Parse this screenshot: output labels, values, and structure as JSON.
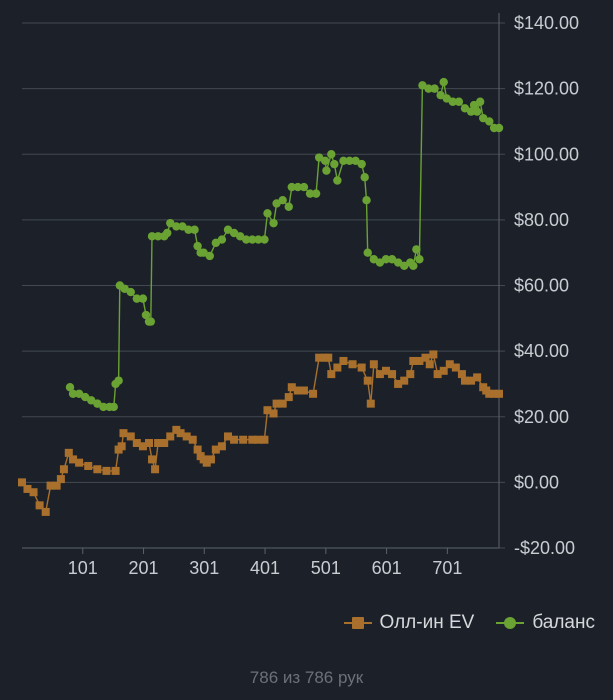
{
  "chart_data": {
    "type": "line",
    "x_ticks": [
      101,
      201,
      301,
      401,
      501,
      601,
      701
    ],
    "x_range": [
      1,
      786
    ],
    "y_ticks": [
      -20,
      0,
      20,
      40,
      60,
      80,
      100,
      120,
      140
    ],
    "y_tick_labels": [
      "-$20.00",
      "$0.00",
      "$20.00",
      "$40.00",
      "$60.00",
      "$80.00",
      "$100.00",
      "$120.00",
      "$140.00"
    ],
    "ylim": [
      -20,
      140
    ],
    "grid": true,
    "legend_position": "bottom-right",
    "series": [
      {
        "name": "Олл-ин EV",
        "color": "#a8702c",
        "marker": "square",
        "points": [
          [
            1,
            0
          ],
          [
            10,
            -2
          ],
          [
            20,
            -3
          ],
          [
            30,
            -7
          ],
          [
            40,
            -9
          ],
          [
            48,
            -1
          ],
          [
            58,
            -1
          ],
          [
            65,
            1
          ],
          [
            70,
            4
          ],
          [
            78,
            9
          ],
          [
            85,
            7
          ],
          [
            95,
            6
          ],
          [
            110,
            5
          ],
          [
            125,
            4
          ],
          [
            140,
            3.5
          ],
          [
            155,
            3.5
          ],
          [
            160,
            10
          ],
          [
            165,
            11
          ],
          [
            168,
            15
          ],
          [
            180,
            14
          ],
          [
            190,
            12
          ],
          [
            200,
            11
          ],
          [
            210,
            12
          ],
          [
            215,
            7
          ],
          [
            220,
            4
          ],
          [
            225,
            12
          ],
          [
            235,
            12
          ],
          [
            245,
            14
          ],
          [
            255,
            16
          ],
          [
            262,
            15
          ],
          [
            272,
            14
          ],
          [
            282,
            13
          ],
          [
            290,
            10
          ],
          [
            295,
            8
          ],
          [
            300,
            7
          ],
          [
            305,
            6
          ],
          [
            312,
            7
          ],
          [
            320,
            10
          ],
          [
            330,
            11
          ],
          [
            340,
            14
          ],
          [
            350,
            13
          ],
          [
            365,
            13
          ],
          [
            380,
            13
          ],
          [
            390,
            13
          ],
          [
            400,
            13
          ],
          [
            405,
            22
          ],
          [
            415,
            21
          ],
          [
            420,
            24
          ],
          [
            430,
            24
          ],
          [
            440,
            26
          ],
          [
            445,
            29
          ],
          [
            455,
            28
          ],
          [
            465,
            28
          ],
          [
            480,
            27
          ],
          [
            490,
            38
          ],
          [
            500,
            38
          ],
          [
            505,
            38
          ],
          [
            510,
            33
          ],
          [
            520,
            35
          ],
          [
            530,
            37
          ],
          [
            545,
            36
          ],
          [
            560,
            35
          ],
          [
            570,
            31
          ],
          [
            575,
            24
          ],
          [
            580,
            36
          ],
          [
            590,
            33
          ],
          [
            600,
            34
          ],
          [
            610,
            33
          ],
          [
            620,
            30
          ],
          [
            630,
            31
          ],
          [
            640,
            33
          ],
          [
            645,
            37
          ],
          [
            655,
            37
          ],
          [
            665,
            38
          ],
          [
            672,
            36
          ],
          [
            678,
            39
          ],
          [
            685,
            33
          ],
          [
            695,
            34
          ],
          [
            705,
            36
          ],
          [
            715,
            35
          ],
          [
            725,
            33
          ],
          [
            730,
            31
          ],
          [
            740,
            31
          ],
          [
            750,
            32
          ],
          [
            760,
            29
          ],
          [
            765,
            28
          ],
          [
            770,
            27
          ],
          [
            778,
            27
          ],
          [
            786,
            27
          ]
        ]
      },
      {
        "name": "баланс",
        "color": "#6aa233",
        "marker": "circle",
        "points": [
          [
            80,
            29
          ],
          [
            85,
            27
          ],
          [
            95,
            27
          ],
          [
            105,
            26
          ],
          [
            115,
            25
          ],
          [
            125,
            24
          ],
          [
            135,
            23
          ],
          [
            145,
            23
          ],
          [
            152,
            23
          ],
          [
            155,
            30
          ],
          [
            160,
            31
          ],
          [
            162,
            60
          ],
          [
            170,
            59
          ],
          [
            180,
            58
          ],
          [
            190,
            56
          ],
          [
            200,
            56
          ],
          [
            205,
            51
          ],
          [
            210,
            49
          ],
          [
            213,
            49
          ],
          [
            215,
            75
          ],
          [
            225,
            75
          ],
          [
            235,
            75
          ],
          [
            240,
            76
          ],
          [
            245,
            79
          ],
          [
            255,
            78
          ],
          [
            265,
            78
          ],
          [
            275,
            77
          ],
          [
            285,
            77
          ],
          [
            290,
            72
          ],
          [
            295,
            70
          ],
          [
            300,
            70
          ],
          [
            310,
            69
          ],
          [
            320,
            73
          ],
          [
            330,
            74
          ],
          [
            340,
            77
          ],
          [
            350,
            76
          ],
          [
            360,
            75
          ],
          [
            370,
            74
          ],
          [
            380,
            74
          ],
          [
            390,
            74
          ],
          [
            400,
            74
          ],
          [
            405,
            82
          ],
          [
            415,
            79
          ],
          [
            420,
            85
          ],
          [
            430,
            86
          ],
          [
            440,
            84
          ],
          [
            445,
            90
          ],
          [
            455,
            90
          ],
          [
            465,
            90
          ],
          [
            475,
            88
          ],
          [
            485,
            88
          ],
          [
            490,
            99
          ],
          [
            500,
            98
          ],
          [
            502,
            95
          ],
          [
            510,
            100
          ],
          [
            515,
            97
          ],
          [
            520,
            92
          ],
          [
            530,
            98
          ],
          [
            540,
            98
          ],
          [
            550,
            98
          ],
          [
            560,
            97
          ],
          [
            565,
            93
          ],
          [
            568,
            86
          ],
          [
            570,
            70
          ],
          [
            580,
            68
          ],
          [
            590,
            67
          ],
          [
            600,
            68
          ],
          [
            610,
            68
          ],
          [
            620,
            67
          ],
          [
            630,
            66
          ],
          [
            640,
            67
          ],
          [
            645,
            66
          ],
          [
            650,
            71
          ],
          [
            655,
            68
          ],
          [
            660,
            121
          ],
          [
            670,
            120
          ],
          [
            680,
            120
          ],
          [
            690,
            118
          ],
          [
            695,
            122
          ],
          [
            700,
            117
          ],
          [
            710,
            116
          ],
          [
            720,
            116
          ],
          [
            730,
            114
          ],
          [
            740,
            113
          ],
          [
            745,
            115
          ],
          [
            750,
            113
          ],
          [
            755,
            116
          ],
          [
            760,
            111
          ],
          [
            770,
            110
          ],
          [
            778,
            108
          ],
          [
            786,
            108
          ]
        ]
      }
    ]
  },
  "legend": {
    "items": [
      {
        "label": "Олл-ин EV",
        "color": "#a8702c",
        "marker": "square"
      },
      {
        "label": "баланс",
        "color": "#6aa233",
        "marker": "circle"
      }
    ]
  },
  "footer": {
    "text": "786 из 786 рук"
  }
}
